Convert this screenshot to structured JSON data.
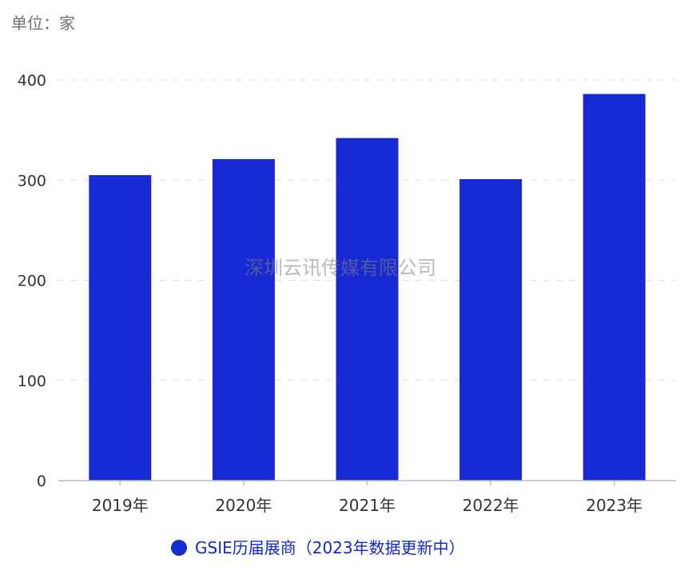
{
  "unit_label": "单位：家",
  "watermark": "深圳云讯传媒有限公司",
  "colors": {
    "bar": "#1729d2",
    "legend_text": "#1128d1",
    "grid": "#dddddd",
    "axis": "#bbbbbb"
  },
  "chart_data": {
    "type": "bar",
    "categories": [
      "2019年",
      "2020年",
      "2021年",
      "2022年",
      "2023年"
    ],
    "series": [
      {
        "name": "GSIE历届展商（2023年数据更新中）",
        "values": [
          305,
          321,
          342,
          301,
          386
        ]
      }
    ],
    "ylim": [
      0,
      400
    ],
    "yticks": [
      0,
      100,
      200,
      300,
      400
    ],
    "grid": true,
    "legend_position": "bottom-center"
  }
}
